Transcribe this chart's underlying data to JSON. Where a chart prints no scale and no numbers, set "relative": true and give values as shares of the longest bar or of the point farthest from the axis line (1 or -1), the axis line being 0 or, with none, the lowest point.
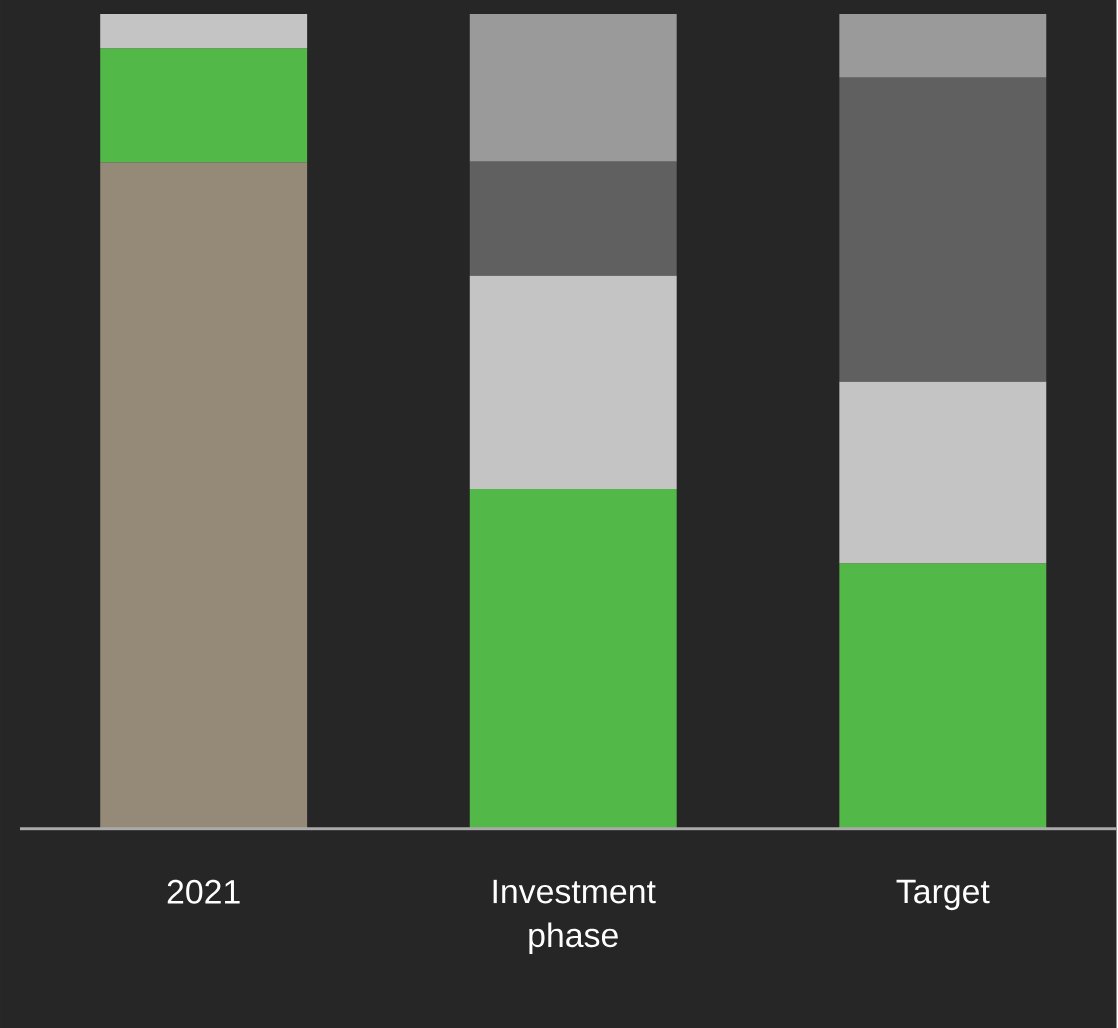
{
  "chart_data": {
    "type": "bar",
    "stacked": true,
    "relative": true,
    "categories": [
      "2021",
      "Investment phase",
      "Target"
    ],
    "series": [
      {
        "color": "#958a78",
        "values": [
          0.818,
          null,
          null
        ]
      },
      {
        "color": "#52b848",
        "values": [
          0.14,
          0.417,
          0.326
        ]
      },
      {
        "color": "#c4c4c4",
        "values": [
          0.042,
          0.262,
          0.223
        ]
      },
      {
        "color": "#606060",
        "values": [
          null,
          0.14,
          0.373
        ]
      },
      {
        "color": "#9a9a9a",
        "values": [
          null,
          0.181,
          0.078
        ]
      }
    ]
  }
}
